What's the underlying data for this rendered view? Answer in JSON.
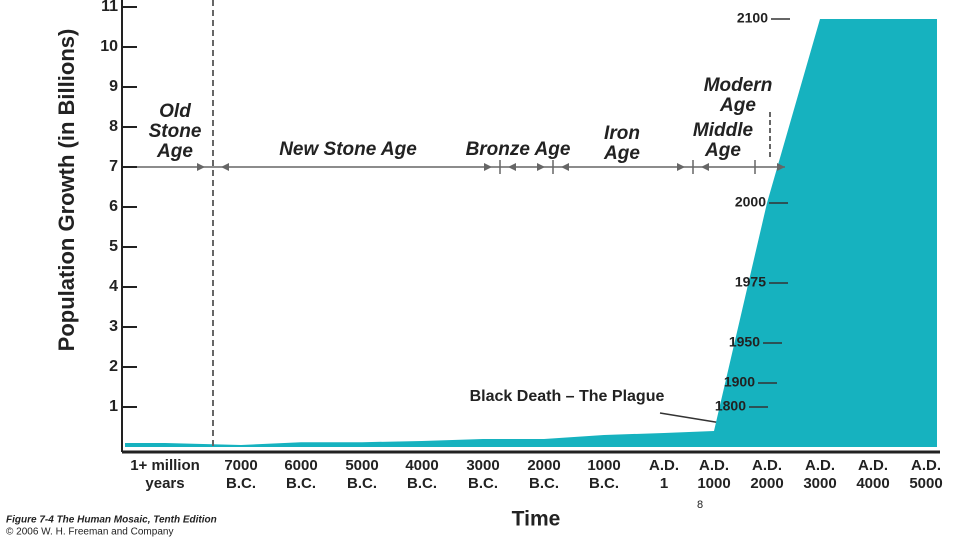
{
  "chart_data": {
    "type": "area",
    "y_label": "Population Growth (in Billions)",
    "x_label": "Time",
    "categories": [
      [
        "1+ million",
        "years"
      ],
      [
        "7000",
        "B.C."
      ],
      [
        "6000",
        "B.C."
      ],
      [
        "5000",
        "B.C."
      ],
      [
        "4000",
        "B.C."
      ],
      [
        "3000",
        "B.C."
      ],
      [
        "2000",
        "B.C."
      ],
      [
        "1000",
        "B.C."
      ],
      [
        "A.D.",
        "1"
      ],
      [
        "A.D.",
        "1000"
      ],
      [
        "A.D.",
        "2000"
      ],
      [
        "A.D.",
        "3000"
      ],
      [
        "A.D.",
        "4000"
      ],
      [
        "A.D.",
        "5000"
      ]
    ],
    "values": [
      0.1,
      0.05,
      0.12,
      0.12,
      0.15,
      0.2,
      0.2,
      0.3,
      0.35,
      0.4,
      6.1,
      10.7,
      10.7,
      10.7
    ],
    "color": "#16b2bf",
    "ylim": [
      0,
      11
    ],
    "yticks": [
      1,
      2,
      3,
      4,
      5,
      6,
      7,
      8,
      9,
      10,
      11
    ],
    "ages": [
      [
        "Old",
        "Stone",
        "Age"
      ],
      [
        "New Stone Age"
      ],
      [
        "Bronze Age"
      ],
      [
        "Iron",
        "Age"
      ],
      [
        "Middle",
        "Age"
      ],
      [
        "Modern",
        "Age"
      ]
    ],
    "year_markers": [
      {
        "label": "2100",
        "y": 10.7
      },
      {
        "label": "2000",
        "y": 6.1
      },
      {
        "label": "1975",
        "y": 4.1
      },
      {
        "label": "1950",
        "y": 2.6
      },
      {
        "label": "1900",
        "y": 1.6
      },
      {
        "label": "1800",
        "y": 1.0
      }
    ],
    "event": "Black Death – The Plague",
    "caption": [
      "Figure 7-4  The Human Mosaic, Tenth Edition",
      "© 2006 W. H. Freeman and Company"
    ],
    "page_number": "8"
  }
}
